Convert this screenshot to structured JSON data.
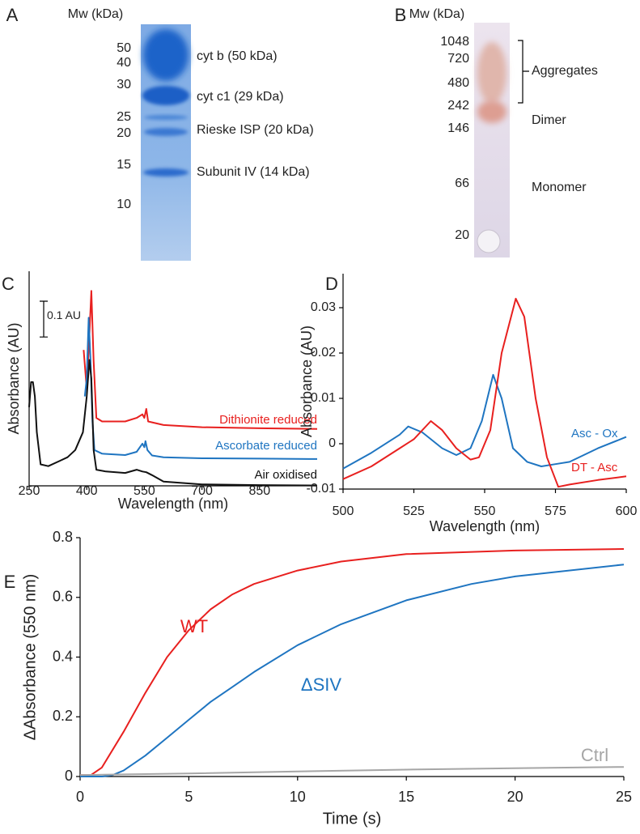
{
  "gel_a": {
    "panel": "A",
    "axis_label": "Mw (kDa)",
    "markers": [
      "50",
      "40",
      "30",
      "25",
      "20",
      "15",
      "10"
    ],
    "bands": [
      "cyt b (50 kDa)",
      "cyt c1 (29 kDa)",
      "Rieske ISP (20 kDa)",
      "Subunit IV (14 kDa)"
    ]
  },
  "gel_b": {
    "panel": "B",
    "axis_label": "Mw (kDa)",
    "markers": [
      "1048",
      "720",
      "480",
      "242",
      "146",
      "66",
      "20"
    ],
    "bands": [
      "Aggregates",
      "Dimer",
      "Monomer"
    ]
  },
  "chart_data": [
    {
      "type": "line",
      "panel": "C",
      "xlabel": "Wavelength (nm)",
      "ylabel": "Absorbance (AU)",
      "xlim": [
        250,
        1000
      ],
      "xticks": [
        250,
        400,
        550,
        700,
        850
      ],
      "ylim": [
        0,
        0.6
      ],
      "scale_bar": {
        "value": 0.1,
        "label": "0.1 AU"
      },
      "series": [
        {
          "name": "Dithionite reduced",
          "color": "#e8201f",
          "x": [
            392,
            400,
            406,
            412,
            418,
            425,
            440,
            500,
            530,
            545,
            550,
            555,
            560,
            600,
            700,
            850,
            1000
          ],
          "values": [
            0.38,
            0.27,
            0.4,
            0.545,
            0.35,
            0.19,
            0.18,
            0.18,
            0.19,
            0.2,
            0.19,
            0.215,
            0.18,
            0.17,
            0.164,
            0.161,
            0.159
          ]
        },
        {
          "name": "Ascorbate reduced",
          "color": "#1f75c1",
          "x": [
            395,
            400,
            405,
            410,
            415,
            420,
            440,
            500,
            530,
            545,
            550,
            553,
            558,
            570,
            600,
            700,
            850,
            1000
          ],
          "values": [
            0.25,
            0.3,
            0.47,
            0.35,
            0.18,
            0.1,
            0.09,
            0.086,
            0.095,
            0.118,
            0.108,
            0.125,
            0.1,
            0.085,
            0.08,
            0.077,
            0.076,
            0.075
          ]
        },
        {
          "name": "Air oxidised",
          "color": "#111111",
          "x": [
            250,
            255,
            260,
            265,
            270,
            280,
            300,
            330,
            350,
            370,
            390,
            400,
            407,
            412,
            418,
            425,
            450,
            500,
            530,
            545,
            555,
            570,
            600,
            700,
            850,
            1000
          ],
          "values": [
            0.22,
            0.29,
            0.29,
            0.25,
            0.15,
            0.06,
            0.055,
            0.07,
            0.08,
            0.1,
            0.15,
            0.25,
            0.352,
            0.3,
            0.1,
            0.045,
            0.04,
            0.036,
            0.045,
            0.04,
            0.038,
            0.03,
            0.012,
            0.004,
            0.002,
            0.001
          ]
        }
      ]
    },
    {
      "type": "line",
      "panel": "D",
      "xlabel": "Wavelength (nm)",
      "ylabel": "Absorbance (AU)",
      "xlim": [
        500,
        600
      ],
      "xticks": [
        500,
        525,
        550,
        575,
        600
      ],
      "ylim": [
        -0.01,
        0.0375
      ],
      "yticks": [
        -0.01,
        0,
        0.01,
        0.02,
        0.03
      ],
      "series": [
        {
          "name": "Asc - Ox",
          "color": "#1f75c1",
          "x": [
            500,
            510,
            520,
            523,
            528,
            535,
            540,
            545,
            549,
            553,
            556,
            560,
            565,
            570,
            575,
            580,
            590,
            600
          ],
          "values": [
            -0.0055,
            -0.002,
            0.002,
            0.0038,
            0.0025,
            -0.001,
            -0.0025,
            -0.001,
            0.005,
            0.0152,
            0.01,
            -0.001,
            -0.004,
            -0.005,
            -0.0045,
            -0.004,
            -0.001,
            0.0015
          ]
        },
        {
          "name": "DT - Asc",
          "color": "#e8201f",
          "x": [
            500,
            510,
            520,
            525,
            531,
            535,
            540,
            545,
            548,
            552,
            556,
            561,
            564,
            568,
            572,
            576,
            580,
            590,
            600
          ],
          "values": [
            -0.0078,
            -0.005,
            -0.001,
            0.001,
            0.005,
            0.003,
            -0.001,
            -0.0035,
            -0.003,
            0.003,
            0.02,
            0.032,
            0.028,
            0.01,
            -0.003,
            -0.0095,
            -0.009,
            -0.008,
            -0.0072
          ]
        }
      ]
    },
    {
      "type": "line",
      "panel": "E",
      "xlabel": "Time (s)",
      "ylabel": "ΔAbsorbance (550 nm)",
      "xlim": [
        0,
        25
      ],
      "xticks": [
        0,
        5,
        10,
        15,
        20,
        25
      ],
      "ylim": [
        0,
        0.8
      ],
      "yticks": [
        0,
        0.2,
        0.4,
        0.6,
        0.8
      ],
      "series": [
        {
          "name": "WT",
          "color": "#e8201f",
          "x": [
            0,
            0.5,
            1,
            2,
            3,
            4,
            5,
            6,
            7,
            8,
            10,
            12,
            15,
            20,
            25
          ],
          "values": [
            0.005,
            0.005,
            0.03,
            0.15,
            0.28,
            0.4,
            0.49,
            0.56,
            0.61,
            0.645,
            0.69,
            0.72,
            0.745,
            0.757,
            0.762
          ]
        },
        {
          "name": "ΔSIV",
          "color": "#1f75c1",
          "x": [
            0,
            1,
            1.5,
            2,
            3,
            4,
            5,
            6,
            7,
            8,
            10,
            12,
            15,
            18,
            20,
            25
          ],
          "values": [
            0,
            0,
            0.005,
            0.02,
            0.07,
            0.13,
            0.19,
            0.25,
            0.3,
            0.35,
            0.44,
            0.51,
            0.59,
            0.645,
            0.67,
            0.71
          ]
        },
        {
          "name": "Ctrl",
          "color": "#a6a6a6",
          "x": [
            0,
            5,
            10,
            15,
            20,
            25
          ],
          "values": [
            0.005,
            0.01,
            0.017,
            0.023,
            0.028,
            0.032
          ]
        }
      ]
    }
  ]
}
